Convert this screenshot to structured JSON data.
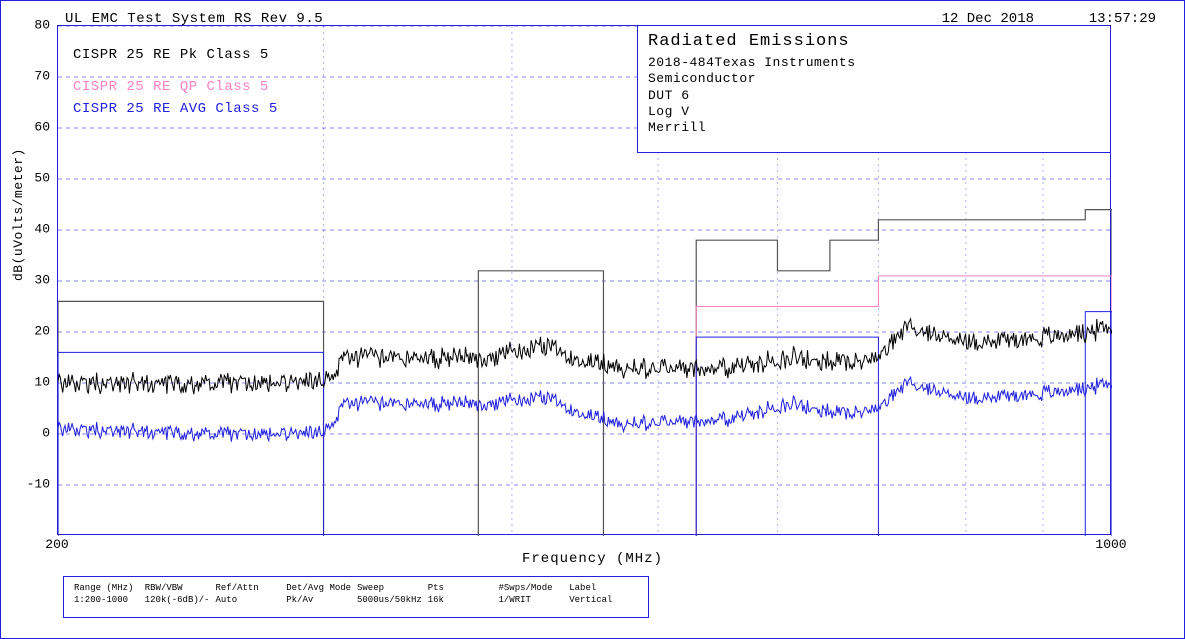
{
  "header": {
    "title": "UL EMC Test System RS Rev 9.5",
    "date": "12 Dec 2018",
    "time": "13:57:29"
  },
  "info_panel": {
    "heading": "Radiated Emissions",
    "lines": [
      "2018-484Texas Instruments",
      "Semiconductor",
      "DUT 6",
      "Log V",
      "Merrill"
    ]
  },
  "limit_legend": {
    "pk": {
      "label": "CISPR 25 RE Pk Class 5",
      "color": "#000000"
    },
    "qp": {
      "label": "CISPR 25 RE QP Class 5",
      "color": "#ff80c0"
    },
    "avg": {
      "label": "CISPR 25 RE AVG Class 5",
      "color": "#2020e0"
    }
  },
  "chart": {
    "type": "line-spectrum",
    "colors": {
      "border": "#2020e0",
      "grid_major": "#2020e0",
      "background": "#ffffff",
      "trace_pk": "#000000",
      "trace_avg": "#2020e0",
      "limit_pk": "#555555",
      "limit_qp": "#ff80c0",
      "limit_avg": "#2020e0"
    },
    "x_axis": {
      "label": "Frequency (MHz)",
      "scale": "log",
      "lim": [
        200,
        1000
      ],
      "tick_labels_at": [
        200,
        1000
      ],
      "minor_ticks": [
        300,
        400,
        500,
        600,
        700,
        800,
        900
      ]
    },
    "y_axis": {
      "label": "dB(uVolts/meter)",
      "lim": [
        -20,
        80
      ],
      "ticks": [
        -10,
        0,
        10,
        20,
        30,
        40,
        50,
        60,
        70,
        80
      ]
    },
    "limit_lines": {
      "pk": [
        {
          "f0": 200,
          "f1": 300,
          "lvl": 26
        },
        {
          "f0": 380,
          "f1": 460,
          "lvl": 32
        },
        {
          "f0": 530,
          "f1": 600,
          "lvl": 38
        },
        {
          "f0": 600,
          "f1": 650,
          "lvl": 32
        },
        {
          "f0": 650,
          "f1": 700,
          "lvl": 38
        },
        {
          "f0": 700,
          "f1": 960,
          "lvl": 42
        },
        {
          "f0": 960,
          "f1": 1000,
          "lvl": 44
        }
      ],
      "qp": [
        {
          "f0": 530,
          "f1": 700,
          "lvl": 25
        },
        {
          "f0": 700,
          "f1": 960,
          "lvl": 31
        },
        {
          "f0": 960,
          "f1": 1000,
          "lvl": 31
        }
      ],
      "avg": [
        {
          "f0": 200,
          "f1": 300,
          "lvl": 16
        },
        {
          "f0": 530,
          "f1": 700,
          "lvl": 19
        },
        {
          "f0": 960,
          "f1": 1000,
          "lvl": 24
        }
      ]
    },
    "traces": {
      "pk": {
        "color": "#000000",
        "noise_amp": 1.6,
        "envelope": [
          {
            "f": 200,
            "v": 10
          },
          {
            "f": 260,
            "v": 10
          },
          {
            "f": 300,
            "v": 10
          },
          {
            "f": 310,
            "v": 15
          },
          {
            "f": 380,
            "v": 15
          },
          {
            "f": 420,
            "v": 17
          },
          {
            "f": 470,
            "v": 13
          },
          {
            "f": 560,
            "v": 13
          },
          {
            "f": 610,
            "v": 15
          },
          {
            "f": 660,
            "v": 14
          },
          {
            "f": 700,
            "v": 15
          },
          {
            "f": 730,
            "v": 21
          },
          {
            "f": 800,
            "v": 18
          },
          {
            "f": 900,
            "v": 19
          },
          {
            "f": 960,
            "v": 20
          },
          {
            "f": 1000,
            "v": 21
          }
        ]
      },
      "avg": {
        "color": "#2020e0",
        "noise_amp": 1.2,
        "envelope": [
          {
            "f": 200,
            "v": 1
          },
          {
            "f": 260,
            "v": 0
          },
          {
            "f": 300,
            "v": 0
          },
          {
            "f": 310,
            "v": 6
          },
          {
            "f": 380,
            "v": 6
          },
          {
            "f": 420,
            "v": 7
          },
          {
            "f": 470,
            "v": 2
          },
          {
            "f": 560,
            "v": 3
          },
          {
            "f": 610,
            "v": 6
          },
          {
            "f": 660,
            "v": 4
          },
          {
            "f": 700,
            "v": 5
          },
          {
            "f": 730,
            "v": 10
          },
          {
            "f": 800,
            "v": 7
          },
          {
            "f": 900,
            "v": 8
          },
          {
            "f": 960,
            "v": 9
          },
          {
            "f": 1000,
            "v": 10
          }
        ]
      }
    }
  },
  "settings": {
    "columns": [
      "Range (MHz)",
      "RBW/VBW",
      "Ref/Attn",
      "Det/Avg Mode",
      "Sweep",
      "Pts",
      "#Swps/Mode",
      "Label"
    ],
    "rows": [
      [
        "1:200-1000",
        "120k(-6dB)/-",
        "Auto",
        "Pk/Av",
        "5000us/50kHz",
        "16k",
        "1/WRIT",
        "Vertical"
      ]
    ]
  }
}
